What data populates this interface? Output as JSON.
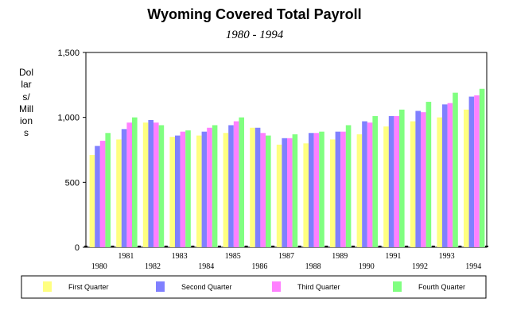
{
  "chart_data": {
    "type": "bar",
    "title": "Wyoming Covered Total Payroll",
    "subtitle": "1980 - 1994",
    "ylabel": "Dollars/Millions",
    "ylim": [
      0,
      1500
    ],
    "yticks": [
      "0",
      "500",
      "1,000",
      "1,500"
    ],
    "ytick_values": [
      0,
      500,
      1000,
      1500
    ],
    "grid": false,
    "legend_position": "bottom",
    "categories": [
      "1980",
      "1981",
      "1982",
      "1983",
      "1984",
      "1985",
      "1986",
      "1987",
      "1988",
      "1989",
      "1990",
      "1991",
      "1992",
      "1993",
      "1994"
    ],
    "series": [
      {
        "name": "First Quarter",
        "color": "#ffff80",
        "values": [
          710,
          830,
          960,
          850,
          860,
          880,
          920,
          790,
          800,
          830,
          870,
          930,
          970,
          1000,
          1060
        ]
      },
      {
        "name": "Second Quarter",
        "color": "#8080ff",
        "values": [
          780,
          910,
          980,
          860,
          890,
          940,
          920,
          840,
          880,
          890,
          970,
          1010,
          1050,
          1100,
          1160
        ]
      },
      {
        "name": "Third Quarter",
        "color": "#ff80ff",
        "values": [
          820,
          960,
          960,
          890,
          920,
          970,
          880,
          840,
          880,
          890,
          960,
          1010,
          1040,
          1110,
          1170
        ]
      },
      {
        "name": "Fourth Quarter",
        "color": "#80ff80",
        "values": [
          880,
          1000,
          940,
          900,
          940,
          1000,
          860,
          870,
          890,
          940,
          1010,
          1060,
          1120,
          1190,
          1220
        ]
      }
    ]
  }
}
